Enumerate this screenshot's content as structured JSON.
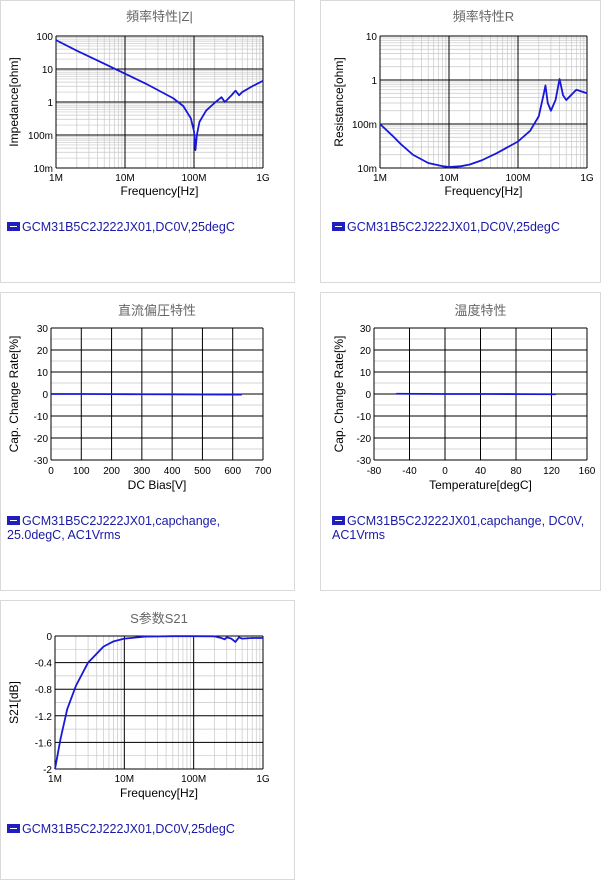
{
  "charts": [
    {
      "title": "頻率特性|Z|",
      "xlabel": "Frequency[Hz]",
      "ylabel": "Impedance[ohm]",
      "xticks": [
        "1M",
        "10M",
        "100M",
        "1G"
      ],
      "yticks": [
        "100",
        "10",
        "1",
        "100m",
        "10m"
      ],
      "legend": "GCM31B5C2J222JX01,DC0V,25degC"
    },
    {
      "title": "頻率特性R",
      "xlabel": "Frequency[Hz]",
      "ylabel": "Resistance[ohm]",
      "xticks": [
        "1M",
        "10M",
        "100M",
        "1G"
      ],
      "yticks": [
        "10",
        "1",
        "100m",
        "10m"
      ],
      "legend": "GCM31B5C2J222JX01,DC0V,25degC"
    },
    {
      "title": "直流偏圧特性",
      "xlabel": "DC Bias[V]",
      "ylabel": "Cap. Change Rate[%]",
      "xticks": [
        "0",
        "100",
        "200",
        "300",
        "400",
        "500",
        "600",
        "700"
      ],
      "yticks": [
        "30",
        "20",
        "10",
        "0",
        "-10",
        "-20",
        "-30"
      ],
      "legend_line1": "GCM31B5C2J222JX01,capchange,",
      "legend_line2": "25.0degC, AC1Vrms"
    },
    {
      "title": "温度特性",
      "xlabel": "Temperature[degC]",
      "ylabel": "Cap. Change Rate[%]",
      "xticks": [
        "-80",
        "-40",
        "0",
        "40",
        "80",
        "120",
        "160"
      ],
      "yticks": [
        "30",
        "20",
        "10",
        "0",
        "-10",
        "-20",
        "-30"
      ],
      "legend_line1": "GCM31B5C2J222JX01,capchange, DC0V,",
      "legend_line2": "AC1Vrms"
    },
    {
      "title": "S参数S21",
      "xlabel": "Frequency[Hz]",
      "ylabel": "S21[dB]",
      "xticks": [
        "1M",
        "10M",
        "100M",
        "1G"
      ],
      "yticks": [
        "0",
        "-0.4",
        "-0.8",
        "-1.2",
        "-1.6",
        "-2"
      ],
      "legend": "GCM31B5C2J222JX01,DC0V,25degC"
    }
  ],
  "chart_data": [
    {
      "type": "line",
      "title": "頻率特性|Z|",
      "xlabel": "Frequency[Hz]",
      "ylabel": "Impedance[ohm]",
      "x_scale": "log",
      "y_scale": "log",
      "xlim": [
        1000000,
        1000000000
      ],
      "ylim": [
        0.01,
        100
      ],
      "series": [
        {
          "name": "GCM31B5C2J222JX01,DC0V,25degC",
          "x": [
            1000000,
            2000000,
            5000000,
            10000000,
            20000000,
            50000000,
            70000000,
            90000000,
            100000000,
            105000000,
            110000000,
            120000000,
            150000000,
            200000000,
            250000000,
            280000000,
            300000000,
            350000000,
            400000000,
            450000000,
            500000000,
            700000000,
            1000000000
          ],
          "y": [
            75,
            36,
            14.5,
            7.2,
            3.6,
            1.3,
            0.75,
            0.32,
            0.13,
            0.035,
            0.1,
            0.25,
            0.55,
            0.95,
            1.4,
            1.0,
            1.15,
            1.6,
            2.2,
            1.6,
            2.0,
            3.0,
            4.4
          ]
        }
      ]
    },
    {
      "type": "line",
      "title": "頻率特性R",
      "xlabel": "Frequency[Hz]",
      "ylabel": "Resistance[ohm]",
      "x_scale": "log",
      "y_scale": "log",
      "xlim": [
        1000000,
        1000000000
      ],
      "ylim": [
        0.01,
        10
      ],
      "series": [
        {
          "name": "GCM31B5C2J222JX01,DC0V,25degC",
          "x": [
            1000000,
            1500000,
            2000000,
            3000000,
            5000000,
            8000000,
            10000000,
            15000000,
            20000000,
            30000000,
            50000000,
            100000000,
            150000000,
            200000000,
            230000000,
            250000000,
            270000000,
            300000000,
            350000000,
            400000000,
            450000000,
            500000000,
            700000000,
            1000000000
          ],
          "y": [
            0.1,
            0.055,
            0.035,
            0.02,
            0.013,
            0.011,
            0.0105,
            0.011,
            0.012,
            0.015,
            0.022,
            0.04,
            0.07,
            0.15,
            0.4,
            0.75,
            0.3,
            0.2,
            0.35,
            1.05,
            0.45,
            0.35,
            0.6,
            0.5
          ]
        }
      ]
    },
    {
      "type": "line",
      "title": "直流偏圧特性",
      "xlabel": "DC Bias[V]",
      "ylabel": "Cap. Change Rate[%]",
      "xlim": [
        0,
        700
      ],
      "ylim": [
        -30,
        30
      ],
      "series": [
        {
          "name": "GCM31B5C2J222JX01,capchange,25.0degC, AC1Vrms",
          "x": [
            0,
            100,
            200,
            300,
            400,
            500,
            630
          ],
          "y": [
            0,
            0,
            -0.05,
            -0.1,
            -0.15,
            -0.2,
            -0.25
          ]
        }
      ]
    },
    {
      "type": "line",
      "title": "温度特性",
      "xlabel": "Temperature[degC]",
      "ylabel": "Cap. Change Rate[%]",
      "xlim": [
        -80,
        160
      ],
      "ylim": [
        -30,
        30
      ],
      "series": [
        {
          "name": "GCM31B5C2J222JX01,capchange, DC0V,AC1Vrms",
          "x": [
            -55,
            -25,
            0,
            25,
            50,
            85,
            125
          ],
          "y": [
            0.1,
            0.05,
            0,
            0,
            0,
            -0.05,
            -0.1
          ]
        }
      ]
    },
    {
      "type": "line",
      "title": "S参数S21",
      "xlabel": "Frequency[Hz]",
      "ylabel": "S21[dB]",
      "x_scale": "log",
      "xlim": [
        1000000,
        1000000000
      ],
      "ylim": [
        -2,
        0
      ],
      "series": [
        {
          "name": "GCM31B5C2J222JX01,DC0V,25degC",
          "x": [
            1000000,
            1200000,
            1500000,
            2000000,
            3000000,
            5000000,
            7000000,
            10000000,
            20000000,
            50000000,
            100000000,
            200000000,
            250000000,
            280000000,
            300000000,
            350000000,
            400000000,
            450000000,
            500000000,
            700000000,
            1000000000
          ],
          "y": [
            -2,
            -1.55,
            -1.1,
            -0.75,
            -0.4,
            -0.16,
            -0.08,
            -0.04,
            -0.01,
            -0.003,
            -0.003,
            -0.005,
            -0.03,
            -0.05,
            -0.02,
            -0.04,
            -0.09,
            -0.02,
            -0.04,
            -0.03,
            -0.03
          ]
        }
      ]
    }
  ]
}
